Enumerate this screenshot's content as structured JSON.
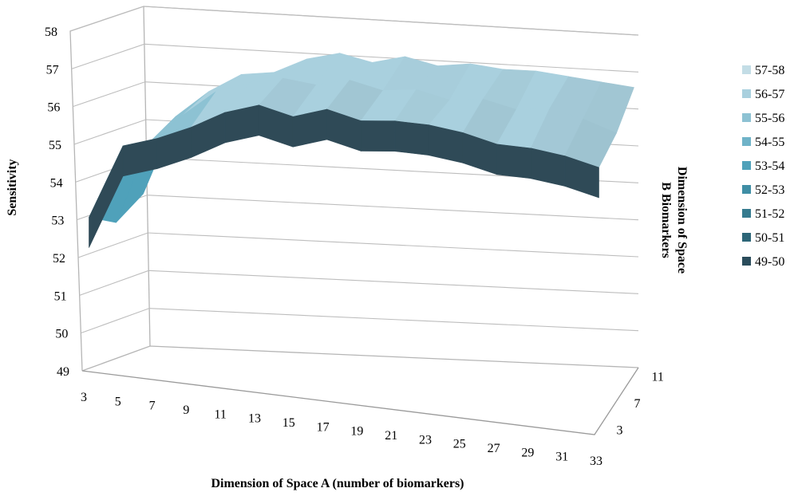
{
  "chart_data": {
    "type": "surface",
    "ylabel": "Sensitivity",
    "xlabel": "Dimension of Space A (number of biomarkers)",
    "zlabel_line1": "Dimension of Space",
    "zlabel_line2": "B Biomarkers",
    "ylim": [
      49,
      58
    ],
    "y_ticks": [
      "49",
      "50",
      "51",
      "52",
      "53",
      "54",
      "55",
      "56",
      "57",
      "58"
    ],
    "x_ticks": [
      "3",
      "5",
      "7",
      "9",
      "11",
      "13",
      "15",
      "17",
      "19",
      "21",
      "23",
      "25",
      "27",
      "29",
      "31",
      "33"
    ],
    "z_ticks": [
      "3",
      "7",
      "11"
    ],
    "legend": [
      {
        "label": "57-58",
        "color": "#c3dde6"
      },
      {
        "label": "56-57",
        "color": "#a9d0de"
      },
      {
        "label": "55-56",
        "color": "#8dc2d3"
      },
      {
        "label": "54-55",
        "color": "#6fb3c8"
      },
      {
        "label": "53-54",
        "color": "#4fa1ba"
      },
      {
        "label": "52-53",
        "color": "#3f8ea5"
      },
      {
        "label": "51-52",
        "color": "#357b8f"
      },
      {
        "label": "50-51",
        "color": "#2d6678"
      },
      {
        "label": "49-50",
        "color": "#2a4c5b"
      }
    ],
    "z": [
      3,
      7,
      11
    ],
    "x": [
      3,
      5,
      7,
      9,
      11,
      13,
      15,
      17,
      19,
      21,
      23,
      25,
      27,
      29,
      31,
      33
    ],
    "series": [
      {
        "z": 3,
        "values": [
          53.0,
          55.0,
          55.3,
          55.7,
          56.2,
          56.5,
          56.3,
          56.6,
          56.4,
          56.5,
          56.5,
          56.4,
          56.2,
          56.2,
          56.1,
          55.9
        ]
      },
      {
        "z": 7,
        "values": [
          52.6,
          54.8,
          55.6,
          56.3,
          56.6,
          56.8,
          56.7,
          56.9,
          56.7,
          56.8,
          56.6,
          56.7,
          56.5,
          56.6,
          56.4,
          56.1
        ]
      },
      {
        "z": 11,
        "values": [
          53.1,
          55.2,
          55.9,
          56.4,
          56.5,
          56.9,
          57.1,
          56.9,
          57.1,
          56.9,
          57.0,
          56.9,
          56.9,
          56.8,
          56.7,
          56.6
        ]
      }
    ],
    "grid": true,
    "legend_position": "right"
  }
}
